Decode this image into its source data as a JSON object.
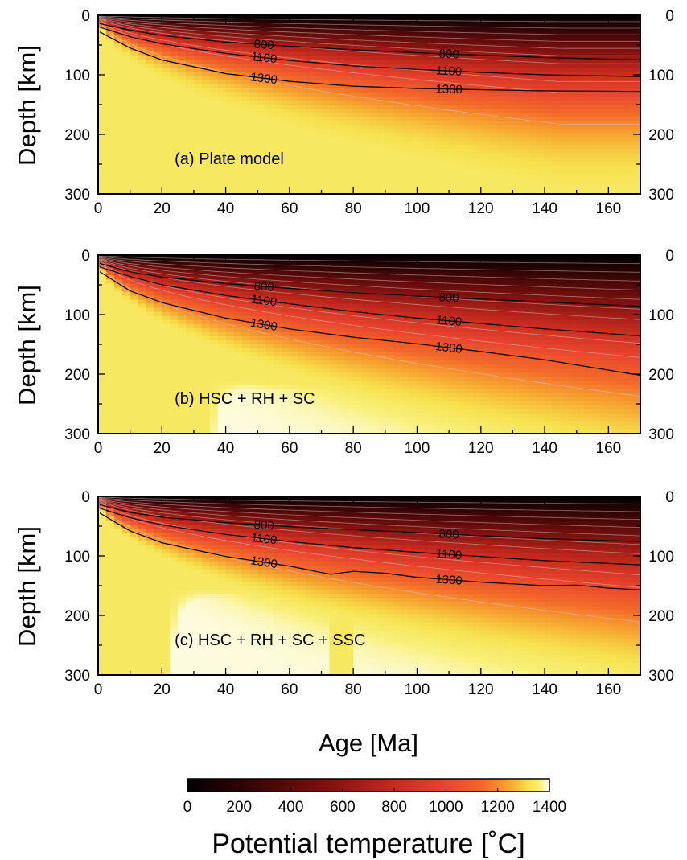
{
  "chart_data": {
    "type": "heatmap",
    "x_axis": {
      "label": "Age [Ma]",
      "range": [
        0,
        170
      ],
      "ticks": [
        0,
        20,
        40,
        60,
        80,
        100,
        120,
        140,
        160
      ]
    },
    "y_axis": {
      "label": "Depth [km]",
      "range": [
        0,
        300
      ],
      "inverted": true,
      "ticks": [
        0,
        100,
        200,
        300
      ],
      "mirrored_right": true
    },
    "colorbar": {
      "title": "Potential temperature [˚C]",
      "range": [
        0,
        1400
      ],
      "ticks": [
        0,
        200,
        400,
        600,
        800,
        1000,
        1200,
        1400
      ],
      "colormap": [
        {
          "t": 0,
          "color": "#000000"
        },
        {
          "t": 200,
          "color": "#2c0404"
        },
        {
          "t": 400,
          "color": "#5c0a0a"
        },
        {
          "t": 600,
          "color": "#8e1612"
        },
        {
          "t": 800,
          "color": "#c42a1e"
        },
        {
          "t": 1000,
          "color": "#e8442e"
        },
        {
          "t": 1150,
          "color": "#f36a2a"
        },
        {
          "t": 1250,
          "color": "#f6aa32"
        },
        {
          "t": 1320,
          "color": "#f6e24e"
        },
        {
          "t": 1360,
          "color": "#f9ef78"
        },
        {
          "t": 1400,
          "color": "#ffffff"
        }
      ]
    },
    "panels": [
      {
        "title": "(a) Plate model",
        "model": "plate",
        "isotherms": [
          {
            "temperature": 800,
            "label": "800",
            "depths": [
              [
                0.5,
                14
              ],
              [
                10,
                25
              ],
              [
                20,
                34
              ],
              [
                40,
                45
              ],
              [
                60,
                52
              ],
              [
                80,
                58
              ],
              [
                100,
                63
              ],
              [
                120,
                67
              ],
              [
                140,
                71
              ],
              [
                170,
                75
              ]
            ]
          },
          {
            "temperature": 1100,
            "label": "1100",
            "depths": [
              [
                0.5,
                20
              ],
              [
                10,
                36
              ],
              [
                20,
                48
              ],
              [
                40,
                64
              ],
              [
                60,
                76
              ],
              [
                80,
                85
              ],
              [
                100,
                91
              ],
              [
                120,
                96
              ],
              [
                140,
                100
              ],
              [
                170,
                103
              ]
            ]
          },
          {
            "temperature": 1300,
            "label": "1300",
            "depths": [
              [
                0.5,
                28
              ],
              [
                10,
                55
              ],
              [
                20,
                75
              ],
              [
                40,
                98
              ],
              [
                60,
                111
              ],
              [
                80,
                119
              ],
              [
                100,
                123
              ],
              [
                120,
                125
              ],
              [
                140,
                127
              ],
              [
                170,
                128
              ]
            ]
          }
        ]
      },
      {
        "title": "(b) HSC + RH + SC",
        "model": "halfspace-rh-sc",
        "isotherms": [
          {
            "temperature": 800,
            "label": "800",
            "depths": [
              [
                0.5,
                14
              ],
              [
                10,
                28
              ],
              [
                20,
                37
              ],
              [
                40,
                48
              ],
              [
                60,
                56
              ],
              [
                80,
                63
              ],
              [
                100,
                69
              ],
              [
                120,
                74
              ],
              [
                140,
                79
              ],
              [
                170,
                86
              ]
            ]
          },
          {
            "temperature": 1100,
            "label": "1100",
            "depths": [
              [
                0.5,
                20
              ],
              [
                10,
                36
              ],
              [
                20,
                50
              ],
              [
                40,
                68
              ],
              [
                60,
                82
              ],
              [
                80,
                95
              ],
              [
                100,
                106
              ],
              [
                120,
                115
              ],
              [
                140,
                124
              ],
              [
                170,
                136
              ]
            ]
          },
          {
            "temperature": 1300,
            "label": "1300",
            "depths": [
              [
                0.5,
                28
              ],
              [
                10,
                60
              ],
              [
                20,
                80
              ],
              [
                40,
                106
              ],
              [
                60,
                124
              ],
              [
                80,
                138
              ],
              [
                100,
                149
              ],
              [
                120,
                162
              ],
              [
                140,
                176
              ],
              [
                170,
                202
              ]
            ]
          }
        ]
      },
      {
        "title": "(c) HSC + RH + SC + SSC",
        "model": "halfspace-rh-sc-ssc",
        "isotherms": [
          {
            "temperature": 800,
            "label": "800",
            "depths": [
              [
                0.5,
                14
              ],
              [
                10,
                27
              ],
              [
                20,
                35
              ],
              [
                40,
                44
              ],
              [
                60,
                51
              ],
              [
                80,
                56
              ],
              [
                100,
                61
              ],
              [
                120,
                66
              ],
              [
                140,
                71
              ],
              [
                170,
                76
              ]
            ]
          },
          {
            "temperature": 1100,
            "label": "1100",
            "depths": [
              [
                0.5,
                20
              ],
              [
                10,
                36
              ],
              [
                20,
                48
              ],
              [
                40,
                64
              ],
              [
                60,
                76
              ],
              [
                80,
                86
              ],
              [
                100,
                94
              ],
              [
                120,
                101
              ],
              [
                140,
                108
              ],
              [
                170,
                115
              ]
            ]
          },
          {
            "temperature": 1300,
            "label": "1300",
            "depths": [
              [
                0.5,
                28
              ],
              [
                10,
                58
              ],
              [
                20,
                78
              ],
              [
                40,
                101
              ],
              [
                60,
                117
              ],
              [
                70,
                128
              ],
              [
                73,
                131
              ],
              [
                80,
                126
              ],
              [
                90,
                129
              ],
              [
                100,
                136
              ],
              [
                120,
                144
              ],
              [
                140,
                150
              ],
              [
                150,
                149
              ],
              [
                160,
                154
              ],
              [
                170,
                157
              ]
            ]
          }
        ]
      }
    ]
  }
}
